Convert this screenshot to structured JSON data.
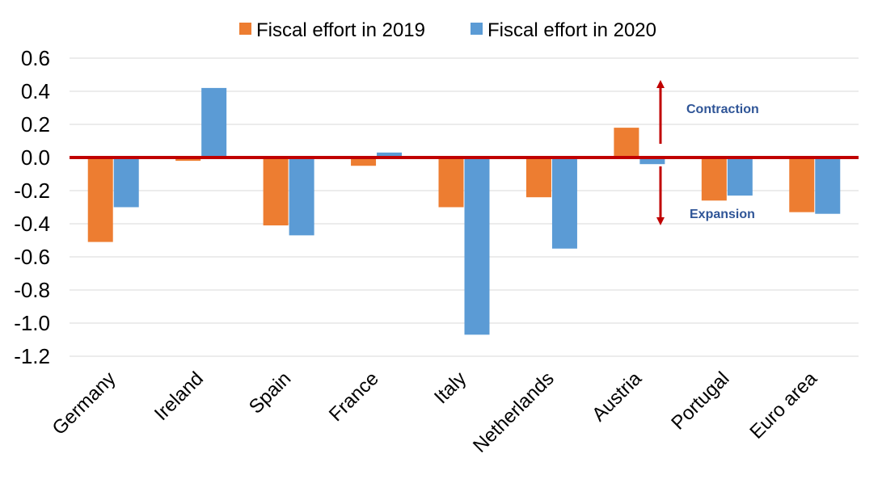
{
  "chart_data": {
    "type": "bar",
    "categories": [
      "Germany",
      "Ireland",
      "Spain",
      "France",
      "Italy",
      "Netherlands",
      "Austria",
      "Portugal",
      "Euro area"
    ],
    "series": [
      {
        "name": "Fiscal effort in 2019",
        "color": "#ED7D31",
        "values": [
          -0.51,
          -0.02,
          -0.41,
          -0.05,
          -0.3,
          -0.24,
          0.18,
          -0.26,
          -0.33
        ]
      },
      {
        "name": "Fiscal effort in 2020",
        "color": "#5B9BD5",
        "values": [
          -0.3,
          0.42,
          -0.47,
          0.03,
          -1.07,
          -0.55,
          -0.04,
          -0.23,
          -0.34
        ]
      }
    ],
    "yticks": [
      "0.6",
      "0.4",
      "0.2",
      "0.0",
      "-0.2",
      "-0.4",
      "-0.6",
      "-0.8",
      "-1.0",
      "-1.2"
    ],
    "ylim": [
      -1.2,
      0.6
    ],
    "grid": true,
    "legend_position": "top",
    "zero_line_color": "#C00000",
    "annotations": {
      "up_label": "Contraction",
      "down_label": "Expansion",
      "label_color": "#2F5597",
      "arrow_color": "#C00000"
    },
    "xlabel": "",
    "ylabel": "",
    "title": ""
  }
}
